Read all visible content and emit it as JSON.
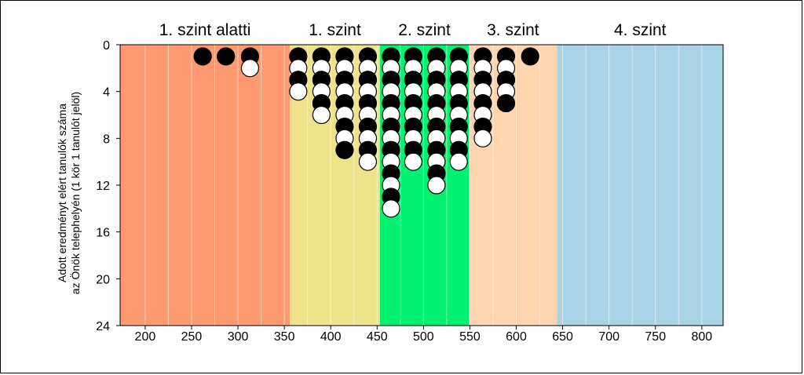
{
  "chart_data": {
    "type": "scatter",
    "ylabel_line1": "Adott eredményt elért tanulók száma",
    "ylabel_line2": "az Önök telephelyén (1 kör 1 tanulót jelöl)",
    "xlim": [
      173,
      823
    ],
    "ylim": [
      0,
      24
    ],
    "y_inverted": true,
    "x_ticks": [
      200,
      250,
      300,
      350,
      400,
      450,
      500,
      550,
      600,
      650,
      700,
      750,
      800
    ],
    "y_ticks": [
      0,
      4,
      8,
      12,
      16,
      20,
      24
    ],
    "grid_x": [
      200,
      225,
      250,
      275,
      300,
      325,
      350,
      375,
      400,
      425,
      450,
      475,
      500,
      525,
      550,
      575,
      600,
      625,
      650,
      675,
      700,
      725,
      750,
      775,
      800
    ],
    "levels": [
      {
        "label": "1. szint alatti",
        "from": 173,
        "to": 356,
        "color": "#FF9A70"
      },
      {
        "label": "1. szint",
        "from": 356,
        "to": 453,
        "color": "#EDE38A"
      },
      {
        "label": "2. szint",
        "from": 453,
        "to": 549,
        "color": "#00F270"
      },
      {
        "label": "3. szint",
        "from": 549,
        "to": 644,
        "color": "#FFD5B0"
      },
      {
        "label": "4. szint",
        "from": 644,
        "to": 823,
        "color": "#A8D4E4"
      }
    ],
    "circle_fill_order": [
      "black",
      "white"
    ],
    "columns": [
      {
        "x": 262,
        "count": 1
      },
      {
        "x": 287,
        "count": 1
      },
      {
        "x": 313,
        "count": 2
      },
      {
        "x": 365,
        "count": 4
      },
      {
        "x": 390,
        "count": 6
      },
      {
        "x": 415,
        "count": 9
      },
      {
        "x": 440,
        "count": 10
      },
      {
        "x": 465,
        "count": 14
      },
      {
        "x": 489,
        "count": 10
      },
      {
        "x": 514,
        "count": 12
      },
      {
        "x": 538,
        "count": 10
      },
      {
        "x": 564,
        "count": 8
      },
      {
        "x": 589,
        "count": 5
      },
      {
        "x": 615,
        "count": 1
      }
    ]
  }
}
